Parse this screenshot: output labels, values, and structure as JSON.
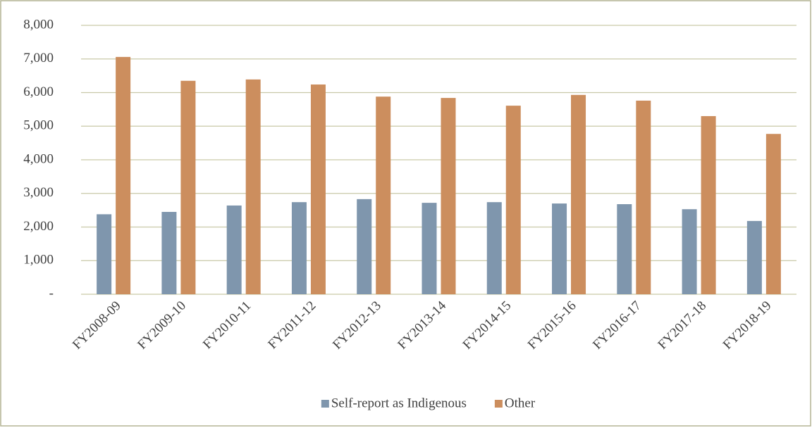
{
  "chart_data": {
    "type": "bar",
    "categories": [
      "FY2008-09",
      "FY2009-10",
      "FY2010-11",
      "FY2011-12",
      "FY2012-13",
      "FY2013-14",
      "FY2014-15",
      "FY2015-16",
      "FY2016-17",
      "FY2017-18",
      "FY2018-19"
    ],
    "series": [
      {
        "name": "Self-report as Indigenous",
        "color": "#7f96ad",
        "values": [
          2380,
          2450,
          2640,
          2740,
          2830,
          2720,
          2740,
          2700,
          2680,
          2530,
          2180
        ]
      },
      {
        "name": "Other",
        "color": "#cc8e5e",
        "values": [
          7060,
          6350,
          6390,
          6240,
          5880,
          5840,
          5610,
          5930,
          5760,
          5300,
          4770
        ]
      }
    ],
    "ylim": [
      0,
      8000
    ],
    "yticks": [
      {
        "value": 0,
        "label": "-"
      },
      {
        "value": 1000,
        "label": "1,000"
      },
      {
        "value": 2000,
        "label": "2,000"
      },
      {
        "value": 3000,
        "label": "3,000"
      },
      {
        "value": 4000,
        "label": "4,000"
      },
      {
        "value": 5000,
        "label": "5,000"
      },
      {
        "value": 6000,
        "label": "6,000"
      },
      {
        "value": 7000,
        "label": "7,000"
      },
      {
        "value": 8000,
        "label": "8,000"
      }
    ],
    "grid": true,
    "legend": "bottom"
  }
}
